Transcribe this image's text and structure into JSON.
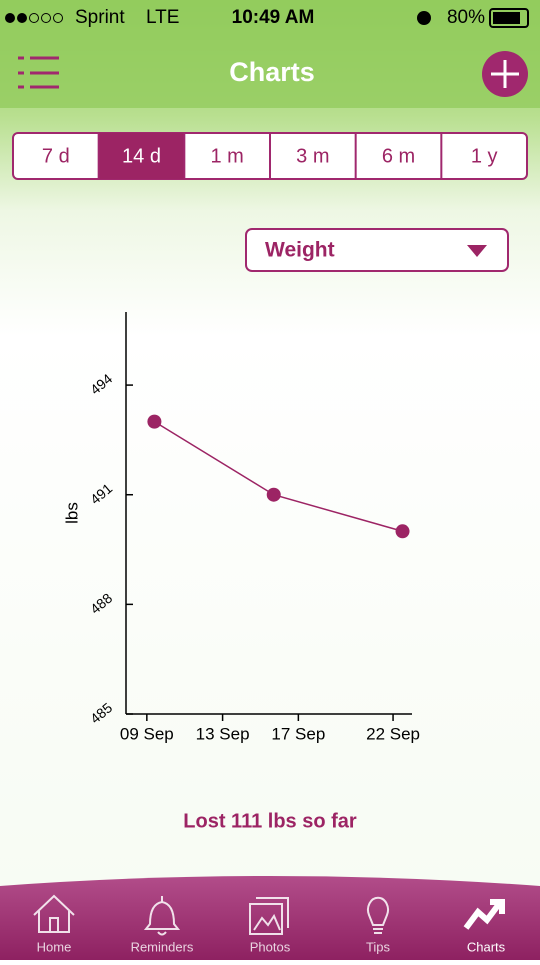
{
  "status_bar": {
    "carrier": "Sprint",
    "network": "LTE",
    "time": "10:49 AM",
    "battery": "80%"
  },
  "header": {
    "title": "Charts"
  },
  "range_tabs": {
    "items": [
      "7 d",
      "14 d",
      "1 m",
      "3 m",
      "6 m",
      "1 y"
    ],
    "selected": 1
  },
  "metric_dropdown": {
    "label": "Weight"
  },
  "chart": {
    "type": "line",
    "y_label": "lbs",
    "color": "#9c2464",
    "x": [
      9.4,
      15.7,
      22.5
    ],
    "values": [
      493.0,
      491.0,
      490.0
    ],
    "xlim": [
      7.9,
      23.0
    ],
    "xticks": [
      {
        "value": 9,
        "label": "09 Sep"
      },
      {
        "value": 13,
        "label": "13 Sep"
      },
      {
        "value": 17,
        "label": "17 Sep"
      },
      {
        "value": 22,
        "label": "22 Sep"
      }
    ],
    "ylim": [
      485,
      496
    ],
    "yticks": [
      485,
      488,
      491,
      494
    ]
  },
  "summary": "Lost 111 lbs so far",
  "tab_bar": {
    "items": [
      "Home",
      "Reminders",
      "Photos",
      "Tips",
      "Charts"
    ],
    "selected": 4
  }
}
